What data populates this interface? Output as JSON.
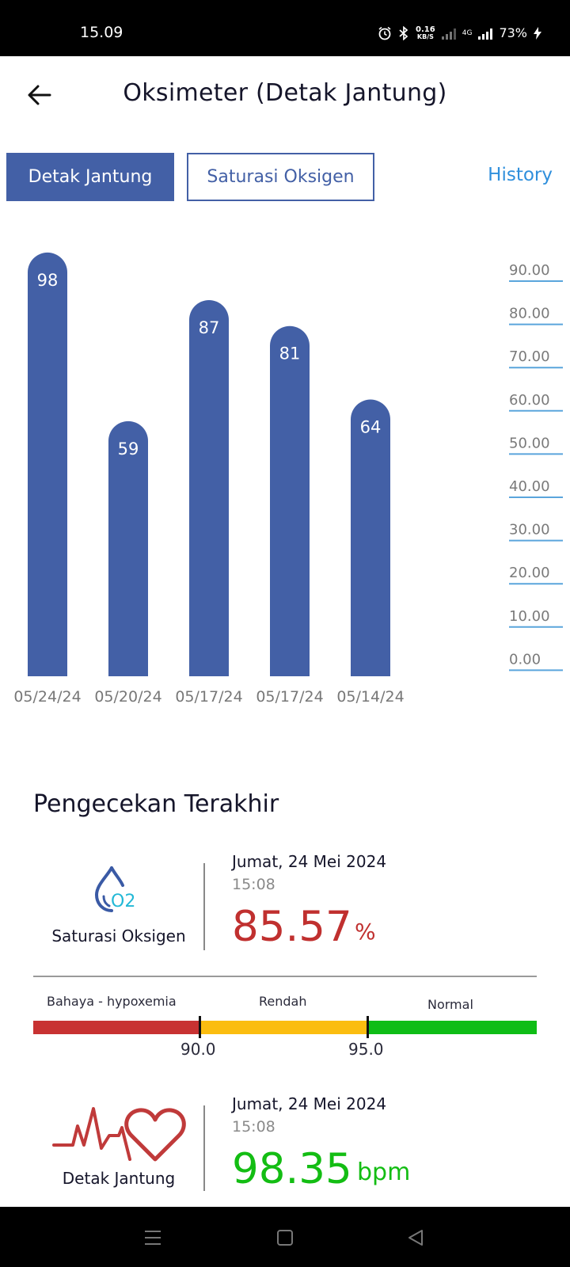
{
  "status_bar": {
    "time": "15.09",
    "net_speed": "0.16",
    "net_unit": "KB/S",
    "network_type": "4G",
    "battery": "73%"
  },
  "header": {
    "title": "Oksimeter (Detak Jantung)"
  },
  "tabs": [
    {
      "label": "Detak Jantung",
      "active": true
    },
    {
      "label": "Saturasi Oksigen",
      "active": false
    }
  ],
  "history_label": "History",
  "chart_data": {
    "type": "bar",
    "categories": [
      "05/24/24",
      "05/20/24",
      "05/17/24",
      "05/17/24",
      "05/14/24"
    ],
    "values": [
      98,
      59,
      87,
      81,
      64
    ],
    "y_ticks": [
      "90.00",
      "80.00",
      "70.00",
      "60.00",
      "50.00",
      "40.00",
      "30.00",
      "20.00",
      "10.00",
      "0.00"
    ],
    "bar_color": "#4360a6",
    "axis_line_color": "#5aa5dc",
    "data_labels": true
  },
  "latest": {
    "title": "Pengecekan Terakhir",
    "oxygen": {
      "icon": "oxygen-drop-icon",
      "label": "Saturasi Oksigen",
      "date": "Jumat, 24 Mei 2024",
      "time": "15:08",
      "value": "85.57",
      "unit": "%",
      "color": "#c0302f"
    },
    "range": {
      "labels": [
        "Bahaya - hypoxemia",
        "Rendah",
        "Normal"
      ],
      "colors": [
        "#c83232",
        "#fbbd10",
        "#0fbd16"
      ],
      "thresholds": [
        "90.0",
        "95.0"
      ]
    },
    "heart": {
      "icon": "heartbeat-icon",
      "label": "Detak Jantung",
      "date": "Jumat, 24 Mei 2024",
      "time": "15:08",
      "value": "98.35",
      "unit": "bpm",
      "color": "#13bd13"
    }
  }
}
